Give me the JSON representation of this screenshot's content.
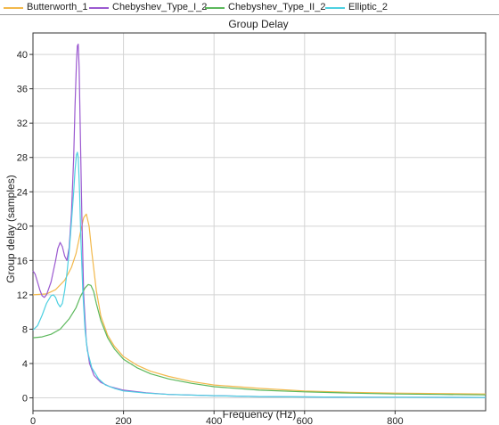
{
  "legend": {
    "items": [
      {
        "label": "Butterworth_1",
        "color": "#f2b84b"
      },
      {
        "label": "Chebyshev_Type_I_2",
        "color": "#9b59d0"
      },
      {
        "label": "Chebyshev_Type_II_2",
        "color": "#5cb85c"
      },
      {
        "label": "Elliptic_2",
        "color": "#4dd0e1"
      }
    ]
  },
  "chart_data": {
    "type": "line",
    "title": "Group Delay",
    "xlabel": "Frequency (Hz)",
    "ylabel": "Group delay (samples)",
    "xlim": [
      0,
      1000
    ],
    "ylim": [
      -1.5,
      42.5
    ],
    "xticks": [
      "0",
      "200",
      "400",
      "600",
      "800"
    ],
    "yticks": [
      "0",
      "4",
      "8",
      "12",
      "16",
      "20",
      "24",
      "28",
      "32",
      "36",
      "40"
    ],
    "grid": true,
    "legend_position": "top",
    "series": [
      {
        "name": "Butterworth_1",
        "color": "#f2b84b",
        "x": [
          0,
          30,
          50,
          70,
          85,
          95,
          105,
          112,
          118,
          124,
          130,
          140,
          150,
          165,
          180,
          200,
          230,
          260,
          300,
          350,
          400,
          500,
          600,
          700,
          800,
          900,
          1000
        ],
        "y": [
          12.0,
          12.1,
          12.6,
          13.7,
          15.2,
          16.8,
          19.3,
          21.0,
          21.4,
          20.0,
          17.0,
          12.5,
          9.5,
          7.3,
          6.0,
          4.8,
          3.8,
          3.1,
          2.5,
          1.9,
          1.5,
          1.1,
          0.8,
          0.65,
          0.55,
          0.5,
          0.45
        ]
      },
      {
        "name": "Chebyshev_Type_I_2",
        "color": "#9b59d0",
        "x": [
          0,
          5,
          10,
          15,
          20,
          25,
          30,
          40,
          50,
          55,
          60,
          65,
          70,
          75,
          80,
          85,
          90,
          93,
          96,
          98,
          100,
          102,
          105,
          108,
          112,
          118,
          125,
          135,
          150,
          170,
          200,
          250,
          300,
          400,
          500,
          700,
          1000
        ],
        "y": [
          14.8,
          14.4,
          13.5,
          12.6,
          11.9,
          11.7,
          12.0,
          13.5,
          16.0,
          17.4,
          18.1,
          17.6,
          16.5,
          16.0,
          17.5,
          21.5,
          28.0,
          34.0,
          39.0,
          41.0,
          41.2,
          38.5,
          30.0,
          21.0,
          12.0,
          6.5,
          4.0,
          2.6,
          1.8,
          1.3,
          0.9,
          0.6,
          0.4,
          0.25,
          0.15,
          0.08,
          0.05
        ]
      },
      {
        "name": "Chebyshev_Type_II_2",
        "color": "#5cb85c",
        "x": [
          0,
          20,
          40,
          60,
          80,
          95,
          105,
          115,
          122,
          128,
          134,
          140,
          150,
          165,
          180,
          200,
          230,
          260,
          300,
          350,
          400,
          500,
          600,
          700,
          800,
          900,
          1000
        ],
        "y": [
          7.0,
          7.1,
          7.4,
          8.0,
          9.2,
          10.5,
          11.8,
          12.8,
          13.2,
          13.1,
          12.4,
          11.0,
          9.0,
          7.0,
          5.7,
          4.5,
          3.5,
          2.8,
          2.2,
          1.7,
          1.3,
          0.9,
          0.7,
          0.55,
          0.45,
          0.4,
          0.35
        ]
      },
      {
        "name": "Elliptic_2",
        "color": "#4dd0e1",
        "x": [
          0,
          10,
          20,
          30,
          40,
          45,
          50,
          55,
          60,
          65,
          70,
          75,
          80,
          85,
          90,
          93,
          96,
          98,
          100,
          103,
          106,
          110,
          115,
          120,
          130,
          145,
          160,
          180,
          200,
          250,
          300,
          400,
          500,
          700,
          1000
        ],
        "y": [
          7.9,
          8.4,
          9.6,
          11.0,
          11.9,
          12.0,
          11.7,
          11.0,
          10.6,
          11.0,
          12.5,
          14.5,
          17.0,
          20.5,
          24.0,
          26.5,
          28.3,
          28.6,
          28.0,
          24.0,
          18.5,
          12.5,
          8.0,
          5.5,
          3.5,
          2.2,
          1.5,
          1.1,
          0.8,
          0.55,
          0.4,
          0.25,
          0.15,
          0.08,
          0.05
        ]
      }
    ]
  }
}
